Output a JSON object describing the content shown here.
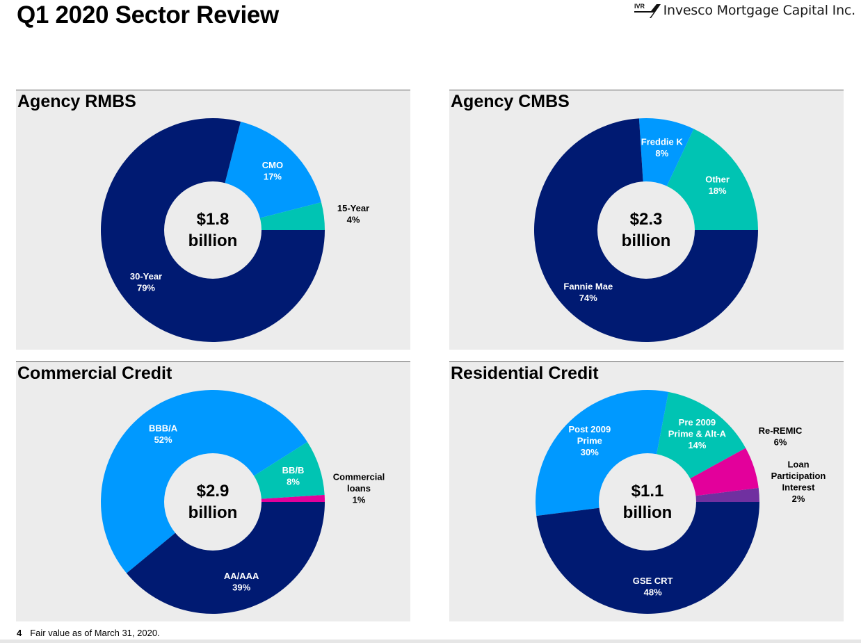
{
  "header": {
    "title": "Q1 2020 Sector Review",
    "logo_badge": "IVR",
    "logo_text": "Invesco Mortgage Capital Inc."
  },
  "colors": {
    "navy": "#001A72",
    "blue": "#0099FF",
    "teal": "#00C4B3",
    "magenta": "#E3009B",
    "purple": "#7030A0",
    "panel_bg": "#ECECEC"
  },
  "chart_data": [
    {
      "type": "pie",
      "title": "Agency RMBS",
      "center_label": [
        "$1.8",
        "billion"
      ],
      "slices": [
        {
          "label": [
            "15-Year",
            "4%"
          ],
          "value": 4,
          "color": "#00C4B3",
          "label_style": "outside"
        },
        {
          "label": [
            "CMO",
            "17%"
          ],
          "value": 17,
          "color": "#0099FF",
          "label_style": "inside"
        },
        {
          "label": [
            "30-Year",
            "79%"
          ],
          "value": 79,
          "color": "#001A72",
          "label_style": "inside"
        }
      ]
    },
    {
      "type": "pie",
      "title": "Agency CMBS",
      "center_label": [
        "$2.3",
        "billion"
      ],
      "slices": [
        {
          "label": [
            "Other",
            "18%"
          ],
          "value": 18,
          "color": "#00C4B3",
          "label_style": "inside"
        },
        {
          "label": [
            "Freddie K",
            "8%"
          ],
          "value": 8,
          "color": "#0099FF",
          "label_style": "inside"
        },
        {
          "label": [
            "Fannie Mae",
            "74%"
          ],
          "value": 74,
          "color": "#001A72",
          "label_style": "inside"
        }
      ]
    },
    {
      "type": "pie",
      "title": "Commercial Credit",
      "center_label": [
        "$2.9",
        "billion"
      ],
      "slices": [
        {
          "label": [
            "Commercial",
            "loans",
            "1%"
          ],
          "value": 1,
          "color": "#E3009B",
          "label_style": "outside"
        },
        {
          "label": [
            "BB/B",
            "8%"
          ],
          "value": 8,
          "color": "#00C4B3",
          "label_style": "inside"
        },
        {
          "label": [
            "BBB/A",
            "52%"
          ],
          "value": 52,
          "color": "#0099FF",
          "label_style": "inside"
        },
        {
          "label": [
            "AA/AAA",
            "39%"
          ],
          "value": 39,
          "color": "#001A72",
          "label_style": "inside"
        }
      ]
    },
    {
      "type": "pie",
      "title": "Residential Credit",
      "center_label": [
        "$1.1",
        "billion"
      ],
      "slices": [
        {
          "label": [
            "Loan",
            "Participation",
            "Interest",
            "2%"
          ],
          "value": 2,
          "color": "#7030A0",
          "label_style": "outside"
        },
        {
          "label": [
            "Re-REMIC",
            "6%"
          ],
          "value": 6,
          "color": "#E3009B",
          "label_style": "outside"
        },
        {
          "label": [
            "Pre 2009",
            "Prime & Alt-A",
            "14%"
          ],
          "value": 14,
          "color": "#00C4B3",
          "label_style": "inside"
        },
        {
          "label": [
            "Post 2009",
            "Prime",
            "30%"
          ],
          "value": 30,
          "color": "#0099FF",
          "label_style": "inside"
        },
        {
          "label": [
            "GSE CRT",
            "48%"
          ],
          "value": 48,
          "color": "#001A72",
          "label_style": "inside"
        }
      ]
    }
  ],
  "footer": {
    "page_number": "4",
    "note": "Fair value as of March 31, 2020."
  }
}
